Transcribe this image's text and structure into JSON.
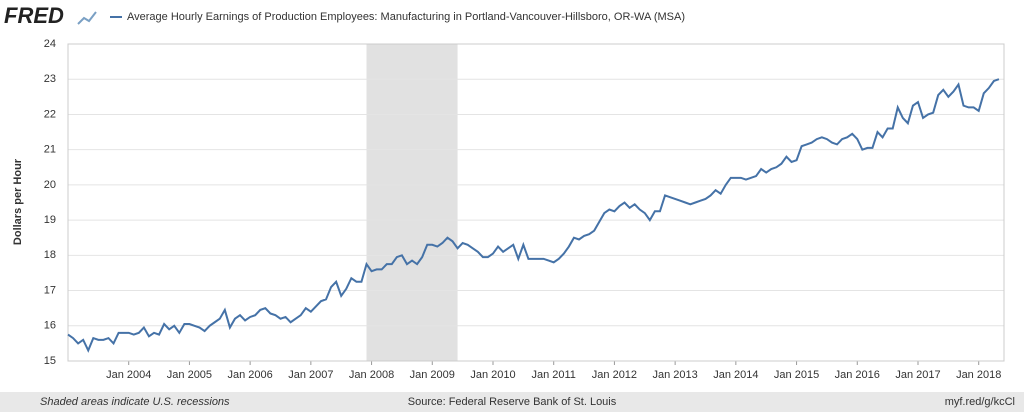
{
  "logo": "FRED",
  "chart_data": {
    "type": "line",
    "ylabel": "Dollars per Hour",
    "x": [
      "2003-01",
      "2003-02",
      "2003-03",
      "2003-04",
      "2003-05",
      "2003-06",
      "2003-07",
      "2003-08",
      "2003-09",
      "2003-10",
      "2003-11",
      "2003-12",
      "2004-01",
      "2004-02",
      "2004-03",
      "2004-04",
      "2004-05",
      "2004-06",
      "2004-07",
      "2004-08",
      "2004-09",
      "2004-10",
      "2004-11",
      "2004-12",
      "2005-01",
      "2005-02",
      "2005-03",
      "2005-04",
      "2005-05",
      "2005-06",
      "2005-07",
      "2005-08",
      "2005-09",
      "2005-10",
      "2005-11",
      "2005-12",
      "2006-01",
      "2006-02",
      "2006-03",
      "2006-04",
      "2006-05",
      "2006-06",
      "2006-07",
      "2006-08",
      "2006-09",
      "2006-10",
      "2006-11",
      "2006-12",
      "2007-01",
      "2007-02",
      "2007-03",
      "2007-04",
      "2007-05",
      "2007-06",
      "2007-07",
      "2007-08",
      "2007-09",
      "2007-10",
      "2007-11",
      "2007-12",
      "2008-01",
      "2008-02",
      "2008-03",
      "2008-04",
      "2008-05",
      "2008-06",
      "2008-07",
      "2008-08",
      "2008-09",
      "2008-10",
      "2008-11",
      "2008-12",
      "2009-01",
      "2009-02",
      "2009-03",
      "2009-04",
      "2009-05",
      "2009-06",
      "2009-07",
      "2009-08",
      "2009-09",
      "2009-10",
      "2009-11",
      "2009-12",
      "2010-01",
      "2010-02",
      "2010-03",
      "2010-04",
      "2010-05",
      "2010-06",
      "2010-07",
      "2010-08",
      "2010-09",
      "2010-10",
      "2010-11",
      "2010-12",
      "2011-01",
      "2011-02",
      "2011-03",
      "2011-04",
      "2011-05",
      "2011-06",
      "2011-07",
      "2011-08",
      "2011-09",
      "2011-10",
      "2011-11",
      "2011-12",
      "2012-01",
      "2012-02",
      "2012-03",
      "2012-04",
      "2012-05",
      "2012-06",
      "2012-07",
      "2012-08",
      "2012-09",
      "2012-10",
      "2012-11",
      "2012-12",
      "2013-01",
      "2013-02",
      "2013-03",
      "2013-04",
      "2013-05",
      "2013-06",
      "2013-07",
      "2013-08",
      "2013-09",
      "2013-10",
      "2013-11",
      "2013-12",
      "2014-01",
      "2014-02",
      "2014-03",
      "2014-04",
      "2014-05",
      "2014-06",
      "2014-07",
      "2014-08",
      "2014-09",
      "2014-10",
      "2014-11",
      "2014-12",
      "2015-01",
      "2015-02",
      "2015-03",
      "2015-04",
      "2015-05",
      "2015-06",
      "2015-07",
      "2015-08",
      "2015-09",
      "2015-10",
      "2015-11",
      "2015-12",
      "2016-01",
      "2016-02",
      "2016-03",
      "2016-04",
      "2016-05",
      "2016-06",
      "2016-07",
      "2016-08",
      "2016-09",
      "2016-10",
      "2016-11",
      "2016-12",
      "2017-01",
      "2017-02",
      "2017-03",
      "2017-04",
      "2017-05",
      "2017-06",
      "2017-07",
      "2017-08",
      "2017-09",
      "2017-10",
      "2017-11",
      "2017-12",
      "2018-01",
      "2018-02",
      "2018-03",
      "2018-04",
      "2018-05"
    ],
    "series": [
      {
        "name": "Average Hourly Earnings of Production Employees: Manufacturing in Portland-Vancouver-Hillsboro, OR-WA (MSA)",
        "color": "#4572a7",
        "values": [
          15.75,
          15.65,
          15.5,
          15.6,
          15.3,
          15.65,
          15.6,
          15.6,
          15.65,
          15.5,
          15.8,
          15.8,
          15.8,
          15.75,
          15.8,
          15.95,
          15.7,
          15.8,
          15.75,
          16.05,
          15.9,
          16.0,
          15.8,
          16.05,
          16.05,
          16.0,
          15.95,
          15.85,
          16.0,
          16.1,
          16.2,
          16.45,
          15.95,
          16.2,
          16.3,
          16.15,
          16.25,
          16.3,
          16.45,
          16.5,
          16.35,
          16.3,
          16.2,
          16.25,
          16.1,
          16.2,
          16.3,
          16.5,
          16.4,
          16.55,
          16.7,
          16.75,
          17.1,
          17.25,
          16.85,
          17.05,
          17.35,
          17.25,
          17.25,
          17.75,
          17.55,
          17.6,
          17.6,
          17.75,
          17.75,
          17.95,
          18.0,
          17.75,
          17.85,
          17.75,
          17.95,
          18.3,
          18.3,
          18.25,
          18.35,
          18.5,
          18.4,
          18.2,
          18.35,
          18.3,
          18.2,
          18.1,
          17.95,
          17.95,
          18.05,
          18.25,
          18.1,
          18.2,
          18.3,
          17.9,
          18.3,
          17.9,
          17.9,
          17.9,
          17.9,
          17.85,
          17.8,
          17.9,
          18.05,
          18.25,
          18.5,
          18.45,
          18.55,
          18.6,
          18.7,
          18.95,
          19.2,
          19.3,
          19.25,
          19.4,
          19.5,
          19.35,
          19.45,
          19.3,
          19.2,
          19.0,
          19.25,
          19.25,
          19.7,
          19.65,
          19.6,
          19.55,
          19.5,
          19.45,
          19.5,
          19.55,
          19.6,
          19.7,
          19.85,
          19.75,
          20.0,
          20.2,
          20.2,
          20.2,
          20.15,
          20.2,
          20.25,
          20.45,
          20.35,
          20.45,
          20.5,
          20.6,
          20.8,
          20.65,
          20.7,
          21.1,
          21.15,
          21.2,
          21.3,
          21.35,
          21.3,
          21.2,
          21.15,
          21.3,
          21.35,
          21.45,
          21.3,
          21.0,
          21.05,
          21.05,
          21.5,
          21.35,
          21.6,
          21.6,
          22.2,
          21.9,
          21.75,
          22.25,
          22.35,
          21.9,
          22.0,
          22.05,
          22.55,
          22.7,
          22.5,
          22.65,
          22.85,
          22.25,
          22.2,
          22.2,
          22.1,
          22.6,
          22.75,
          22.95,
          23.0
        ]
      }
    ],
    "xlim": [
      "2003-01",
      "2018-06"
    ],
    "xticks": [
      {
        "value": "2004-01",
        "label": "Jan 2004"
      },
      {
        "value": "2005-01",
        "label": "Jan 2005"
      },
      {
        "value": "2006-01",
        "label": "Jan 2006"
      },
      {
        "value": "2007-01",
        "label": "Jan 2007"
      },
      {
        "value": "2008-01",
        "label": "Jan 2008"
      },
      {
        "value": "2009-01",
        "label": "Jan 2009"
      },
      {
        "value": "2010-01",
        "label": "Jan 2010"
      },
      {
        "value": "2011-01",
        "label": "Jan 2011"
      },
      {
        "value": "2012-01",
        "label": "Jan 2012"
      },
      {
        "value": "2013-01",
        "label": "Jan 2013"
      },
      {
        "value": "2014-01",
        "label": "Jan 2014"
      },
      {
        "value": "2015-01",
        "label": "Jan 2015"
      },
      {
        "value": "2016-01",
        "label": "Jan 2016"
      },
      {
        "value": "2017-01",
        "label": "Jan 2017"
      },
      {
        "value": "2018-01",
        "label": "Jan 2018"
      }
    ],
    "ylim": [
      15,
      24
    ],
    "yticks": [
      15,
      16,
      17,
      18,
      19,
      20,
      21,
      22,
      23,
      24
    ],
    "grid": true,
    "recessions": [
      {
        "start": "2007-12",
        "end": "2009-06"
      }
    ]
  },
  "footer": {
    "note": "Shaded areas indicate U.S. recessions",
    "source": "Source: Federal Reserve Bank of St. Louis",
    "link": "myf.red/g/kcCl"
  }
}
